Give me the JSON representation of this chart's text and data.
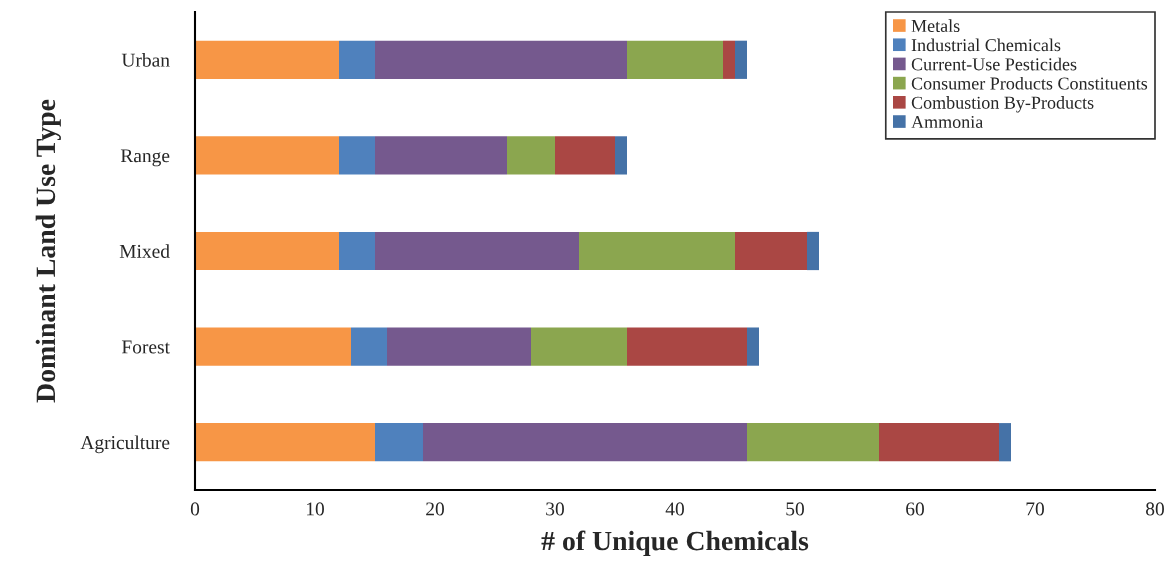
{
  "chart_data": {
    "type": "bar",
    "orientation": "horizontal",
    "stacked": true,
    "xlabel": "# of Unique Chemicals",
    "ylabel": "Dominant Land Use Type",
    "categories": [
      "Urban",
      "Range",
      "Mixed",
      "Forest",
      "Agriculture"
    ],
    "series": [
      {
        "name": "Metals",
        "color": "#f79646",
        "values": [
          12,
          12,
          12,
          13,
          15
        ]
      },
      {
        "name": "Industrial Chemicals",
        "color": "#4f81bd",
        "values": [
          3,
          3,
          3,
          3,
          4
        ]
      },
      {
        "name": "Current-Use Pesticides",
        "color": "#75598e",
        "values": [
          21,
          11,
          17,
          12,
          27
        ]
      },
      {
        "name": "Consumer Products Constituents",
        "color": "#8ba64f",
        "values": [
          8,
          4,
          13,
          8,
          11
        ]
      },
      {
        "name": "Combustion By-Products",
        "color": "#aa4744",
        "values": [
          1,
          5,
          6,
          10,
          10
        ]
      },
      {
        "name": "Ammonia",
        "color": "#4572a7",
        "values": [
          1,
          1,
          1,
          1,
          1
        ]
      }
    ],
    "xlim": [
      0,
      80
    ],
    "xticks": [
      0,
      10,
      20,
      30,
      40,
      50,
      60,
      70,
      80
    ],
    "grid": false,
    "legend": "top right"
  }
}
